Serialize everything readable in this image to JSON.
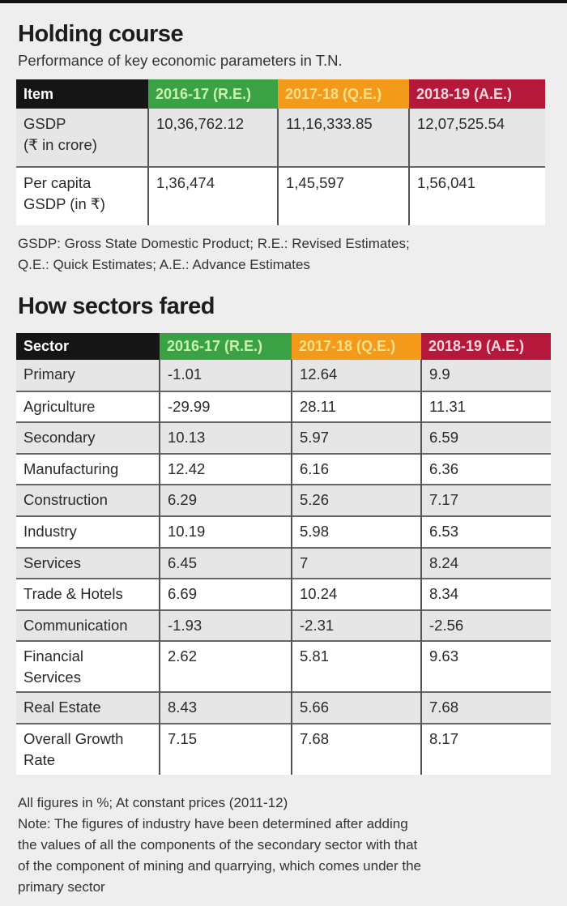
{
  "section1": {
    "title": "Holding course",
    "subtitle": "Performance of key economic parameters in T.N.",
    "headers": [
      "Item",
      "2016-17 (R.E.)",
      "2017-18 (Q.E.)",
      "2018-19 (A.E.)"
    ],
    "rows": [
      {
        "label": "GSDP\n(₹ in crore)",
        "values": [
          "10,36,762.12",
          "11,16,333.85",
          "12,07,525.54"
        ]
      },
      {
        "label": "Per capita\nGSDP (in ₹)",
        "values": [
          "1,36,474",
          "1,45,597",
          "1,56,041"
        ]
      }
    ],
    "notes": [
      "GSDP: Gross State Domestic Product; R.E.: Revised Estimates;",
      "Q.E.: Quick Estimates; A.E.: Advance Estimates"
    ]
  },
  "section2": {
    "title": "How sectors fared",
    "headers": [
      "Sector",
      "2016-17 (R.E.)",
      "2017-18 (Q.E.)",
      "2018-19 (A.E.)"
    ],
    "rows": [
      {
        "label": "Primary",
        "values": [
          "-1.01",
          "12.64",
          "9.9"
        ]
      },
      {
        "label": "Agriculture",
        "values": [
          "-29.99",
          "28.11",
          "11.31"
        ]
      },
      {
        "label": "Secondary",
        "values": [
          "10.13",
          "5.97",
          "6.59"
        ]
      },
      {
        "label": "Manufacturing",
        "values": [
          "12.42",
          "6.16",
          "6.36"
        ]
      },
      {
        "label": "Construction",
        "values": [
          "6.29",
          "5.26",
          "7.17"
        ]
      },
      {
        "label": "Industry",
        "values": [
          "10.19",
          "5.98",
          "6.53"
        ]
      },
      {
        "label": "Services",
        "values": [
          "6.45",
          "7",
          "8.24"
        ]
      },
      {
        "label": "Trade & Hotels",
        "values": [
          "6.69",
          "10.24",
          "8.34"
        ]
      },
      {
        "label": "Communication",
        "values": [
          "-1.93",
          "-2.31",
          "-2.56"
        ]
      },
      {
        "label": "Financial\nServices",
        "values": [
          "2.62",
          "5.81",
          "9.63"
        ]
      },
      {
        "label": "Real Estate",
        "values": [
          "8.43",
          "5.66",
          "7.68"
        ]
      },
      {
        "label": "Overall Growth\nRate",
        "values": [
          "7.15",
          "7.68",
          "8.17"
        ]
      }
    ],
    "notes": [
      "All figures in %; At constant prices (2011-12)",
      "Note: The figures of industry have been determined after adding",
      "the values of all the components of the secondary sector with that",
      "of the component of mining and quarrying, which comes under the",
      "primary sector"
    ]
  },
  "colors": {
    "header_item": "#151515",
    "col_2016": "#3aa245",
    "col_2017": "#f39a1a",
    "col_2018": "#b5183a"
  }
}
